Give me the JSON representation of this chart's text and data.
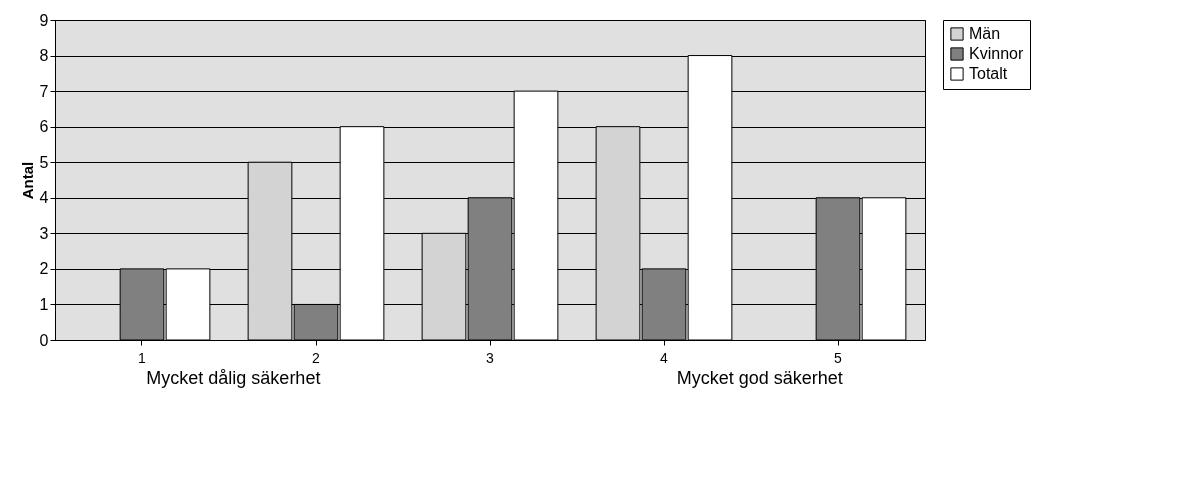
{
  "chart_data": {
    "type": "bar",
    "ylabel": "Antal",
    "categories": [
      "1",
      "2",
      "3",
      "4",
      "5"
    ],
    "series": [
      {
        "name": "Män",
        "color": "#d3d3d3",
        "values": [
          null,
          5,
          3,
          6,
          null
        ]
      },
      {
        "name": "Kvinnor",
        "color": "#808080",
        "values": [
          2,
          1,
          4,
          2,
          4
        ]
      },
      {
        "name": "Totalt",
        "color": "#ffffff",
        "values": [
          2,
          6,
          7,
          8,
          4
        ]
      }
    ],
    "ylim": [
      0,
      9
    ],
    "yticks": [
      0,
      1,
      2,
      3,
      4,
      5,
      6,
      7,
      8,
      9
    ],
    "grid": "y",
    "legend": "right",
    "annotations": [
      "Mycket dålig säkerhet",
      "Mycket god säkerhet"
    ]
  }
}
